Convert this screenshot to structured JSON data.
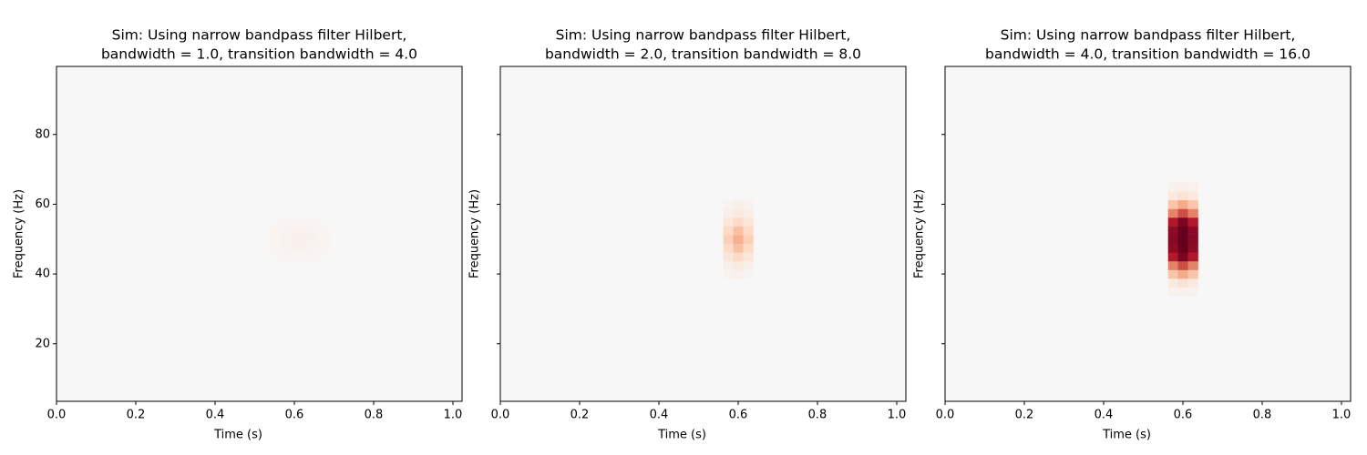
{
  "chart_data": [
    {
      "type": "heatmap",
      "title": [
        "Sim: Using narrow bandpass filter Hilbert,",
        "bandwidth = 1.0, transition bandwidth = 4.0"
      ],
      "xlabel": "Time (s)",
      "ylabel": "Frequency (Hz)",
      "xlim": [
        0,
        1.023
      ],
      "ylim": [
        3.5,
        99.5
      ],
      "xticks": [
        {
          "value": 0,
          "label": "0.0"
        },
        0.2,
        0.4,
        0.6,
        0.8,
        {
          "value": 1,
          "label": "1.0"
        }
      ],
      "yticks": [
        20,
        40,
        60,
        80
      ],
      "ytick_labels": true,
      "colormap": [
        "#f7f7f7",
        "#fddbc7",
        "#f4a582",
        "#d6604d",
        "#b2182b",
        "#67001f"
      ],
      "vlim": [
        0,
        1
      ],
      "x": [
        0.55,
        0.575,
        0.6,
        0.625,
        0.65,
        0.675
      ],
      "y": [
        45,
        47.5,
        50,
        52.5,
        55
      ],
      "values": [
        [
          0.01,
          0.02,
          0.02,
          0.02,
          0.02,
          0.01
        ],
        [
          0.02,
          0.03,
          0.04,
          0.04,
          0.03,
          0.02
        ],
        [
          0.02,
          0.04,
          0.05,
          0.05,
          0.04,
          0.02
        ],
        [
          0.02,
          0.03,
          0.04,
          0.04,
          0.03,
          0.02
        ],
        [
          0.01,
          0.02,
          0.02,
          0.02,
          0.02,
          0.01
        ]
      ]
    },
    {
      "type": "heatmap",
      "title": [
        "Sim: Using narrow bandpass filter Hilbert,",
        "bandwidth = 2.0, transition bandwidth = 8.0"
      ],
      "xlabel": "Time (s)",
      "ylabel": "Frequency (Hz)",
      "xlim": [
        0,
        1.023
      ],
      "ylim": [
        3.5,
        99.5
      ],
      "xticks": [
        {
          "value": 0,
          "label": "0.0"
        },
        0.2,
        0.4,
        0.6,
        0.8,
        {
          "value": 1,
          "label": "1.0"
        }
      ],
      "yticks": [
        20,
        40,
        60,
        80
      ],
      "ytick_labels": false,
      "colormap": [
        "#f7f7f7",
        "#fddbc7",
        "#f4a582",
        "#d6604d",
        "#b2182b",
        "#67001f"
      ],
      "vlim": [
        0,
        1
      ],
      "x": [
        0.575,
        0.6,
        0.625
      ],
      "y": [
        40,
        42.5,
        45,
        47.5,
        50,
        52.5,
        55,
        57.5,
        60
      ],
      "values": [
        [
          0.03,
          0.05,
          0.03
        ],
        [
          0.06,
          0.1,
          0.06
        ],
        [
          0.12,
          0.2,
          0.12
        ],
        [
          0.2,
          0.3,
          0.2
        ],
        [
          0.24,
          0.36,
          0.24
        ],
        [
          0.2,
          0.3,
          0.2
        ],
        [
          0.12,
          0.2,
          0.12
        ],
        [
          0.06,
          0.1,
          0.06
        ],
        [
          0.03,
          0.05,
          0.03
        ]
      ]
    },
    {
      "type": "heatmap",
      "title": [
        "Sim: Using narrow bandpass filter Hilbert,",
        "bandwidth = 4.0, transition bandwidth = 16.0"
      ],
      "xlabel": "Time (s)",
      "ylabel": "Frequency (Hz)",
      "xlim": [
        0,
        1.023
      ],
      "ylim": [
        3.5,
        99.5
      ],
      "xticks": [
        {
          "value": 0,
          "label": "0.0"
        },
        0.2,
        0.4,
        0.6,
        0.8,
        {
          "value": 1,
          "label": "1.0"
        }
      ],
      "yticks": [
        20,
        40,
        60,
        80
      ],
      "ytick_labels": false,
      "colormap": [
        "#f7f7f7",
        "#fddbc7",
        "#f4a582",
        "#d6604d",
        "#b2182b",
        "#67001f"
      ],
      "vlim": [
        0,
        1
      ],
      "x": [
        0.575,
        0.6,
        0.625
      ],
      "y": [
        35,
        37.5,
        40,
        42.5,
        45,
        47.5,
        50,
        52.5,
        55,
        57.5,
        60,
        62.5,
        65
      ],
      "values": [
        [
          0.04,
          0.05,
          0.04
        ],
        [
          0.1,
          0.15,
          0.1
        ],
        [
          0.28,
          0.38,
          0.28
        ],
        [
          0.5,
          0.65,
          0.5
        ],
        [
          0.8,
          0.95,
          0.8
        ],
        [
          0.9,
          1,
          0.9
        ],
        [
          0.92,
          1,
          0.92
        ],
        [
          0.9,
          1,
          0.9
        ],
        [
          0.8,
          0.95,
          0.8
        ],
        [
          0.5,
          0.65,
          0.5
        ],
        [
          0.28,
          0.38,
          0.28
        ],
        [
          0.1,
          0.15,
          0.1
        ],
        [
          0.04,
          0.05,
          0.04
        ]
      ]
    }
  ]
}
